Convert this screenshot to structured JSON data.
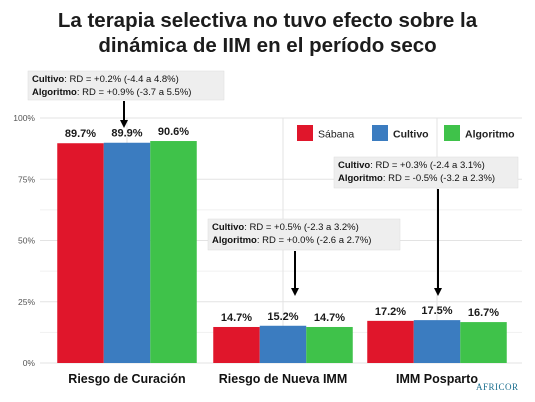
{
  "title_line1": "La terapia selectiva no tuvo efecto sobre la",
  "title_line2": "dinámica de IIM en el período seco",
  "chart_data": {
    "type": "bar",
    "categories": [
      "Riesgo de Curación",
      "Riesgo de Nueva IMM",
      "IMM Posparto"
    ],
    "series": [
      {
        "name": "Sábana",
        "color": "#e0162b",
        "values": [
          89.7,
          14.7,
          17.2
        ]
      },
      {
        "name": "Cultivo",
        "color": "#3b7cc0",
        "values": [
          89.9,
          15.2,
          17.5
        ]
      },
      {
        "name": "Algoritmo",
        "color": "#3fc24a",
        "values": [
          90.6,
          14.7,
          16.7
        ]
      }
    ],
    "value_labels": [
      [
        "89.7%",
        "89.9%",
        "90.6%"
      ],
      [
        "14.7%",
        "15.2%",
        "14.7%"
      ],
      [
        "17.2%",
        "17.5%",
        "16.7%"
      ]
    ],
    "yticks": [
      0,
      25,
      50,
      75,
      100
    ],
    "ytick_labels": [
      "0%",
      "25%",
      "50%",
      "75%",
      "100%"
    ],
    "ylim": [
      0,
      100
    ],
    "grid": true,
    "legend_position": "top-right",
    "annotations": [
      {
        "lines": [
          {
            "bold": "Cultivo",
            "text": ": RD = +0.2% (-4.4 a 4.8%)"
          },
          {
            "bold": "Algoritmo",
            "text": ": RD = +0.9% (-3.7 a 5.5%)"
          }
        ]
      },
      {
        "lines": [
          {
            "bold": "Cultivo",
            "text": ": RD = +0.5% (-2.3 a 3.2%)"
          },
          {
            "bold": "Algoritmo",
            "text": ": RD = +0.0% (-2.6 a 2.7%)"
          }
        ]
      },
      {
        "lines": [
          {
            "bold": "Cultivo",
            "text": ": RD = +0.3% (-2.4 a 3.1%)"
          },
          {
            "bold": "Algoritmo",
            "text": ": RD = -0.5% (-3.2 a 2.3%)"
          }
        ]
      }
    ]
  },
  "watermark": "AFRICOR"
}
